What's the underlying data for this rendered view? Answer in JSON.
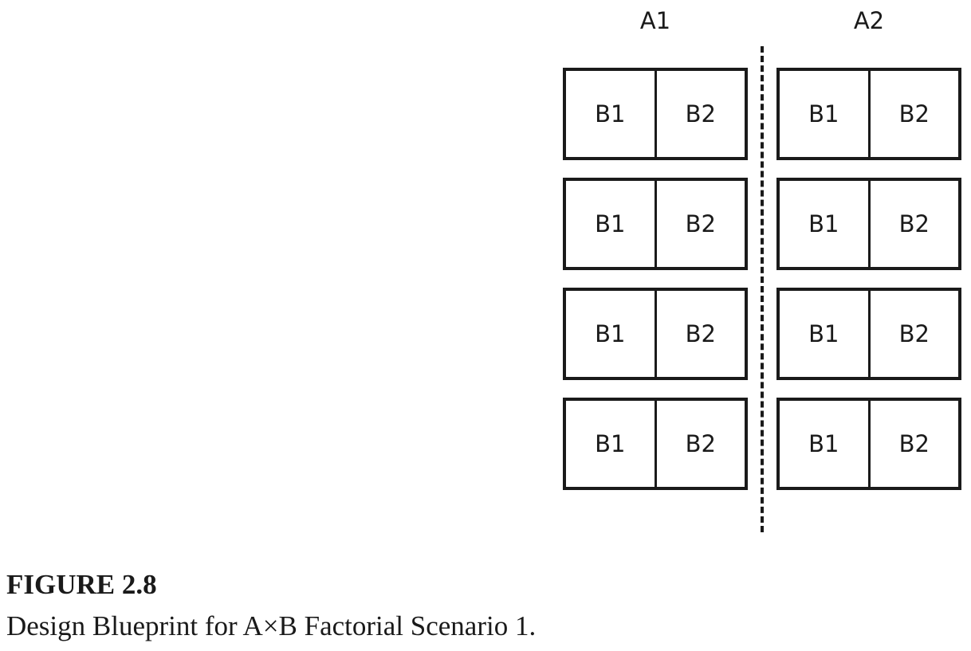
{
  "diagram": {
    "groups": [
      {
        "label": "A1",
        "blocks": [
          {
            "plots": [
              "B1",
              "B2"
            ]
          },
          {
            "plots": [
              "B1",
              "B2"
            ]
          },
          {
            "plots": [
              "B1",
              "B2"
            ]
          },
          {
            "plots": [
              "B1",
              "B2"
            ]
          }
        ]
      },
      {
        "label": "A2",
        "blocks": [
          {
            "plots": [
              "B1",
              "B2"
            ]
          },
          {
            "plots": [
              "B1",
              "B2"
            ]
          },
          {
            "plots": [
              "B1",
              "B2"
            ]
          },
          {
            "plots": [
              "B1",
              "B2"
            ]
          }
        ]
      }
    ]
  },
  "caption": {
    "figure_number": "FIGURE 2.8",
    "text": "Design Blueprint for A×B Factorial Scenario 1."
  }
}
